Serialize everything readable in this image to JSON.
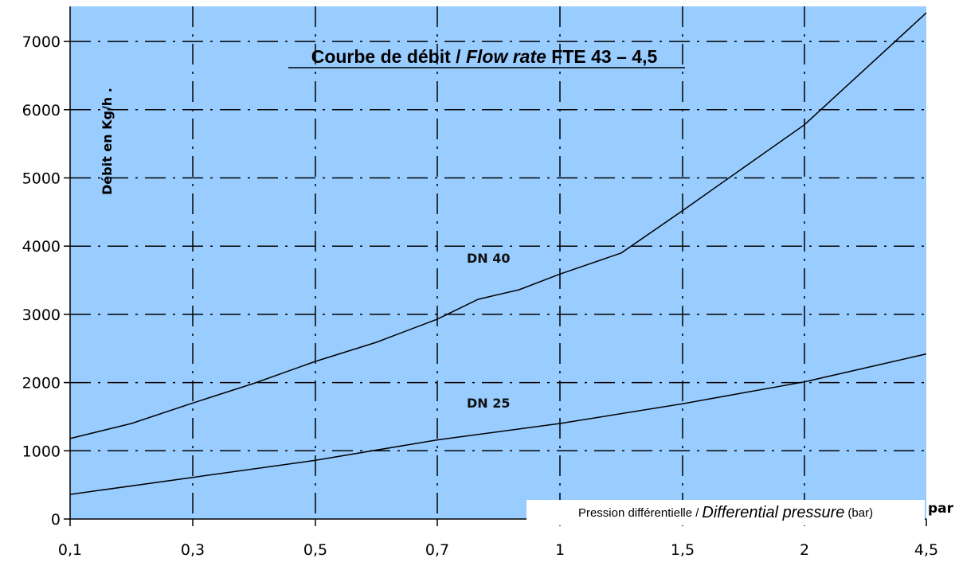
{
  "chart_data": {
    "type": "line",
    "title": {
      "part1": "Courbe de débit / ",
      "part2_italic": "Flow rate",
      "part3": " FTE 43 – 4,5"
    },
    "ylabel": "Débit en Kg/h .",
    "xlabel": {
      "part1": "Pression différentielle / ",
      "part2_italic": "Differential pressure",
      "part3": " (bar)"
    },
    "x_unit_fragment": "par",
    "categories": [
      "0,1",
      "0,3",
      "0,5",
      "0,7",
      "1",
      "1,5",
      "2",
      "4,5"
    ],
    "y_ticks": [
      0,
      1000,
      2000,
      3000,
      4000,
      5000,
      6000,
      7000
    ],
    "ylim": [
      0,
      7500
    ],
    "grid": true,
    "background_color": "#99ccff",
    "grid_color": "#000000",
    "line_color": "#000000",
    "series": [
      {
        "name": "DN 40",
        "points": [
          [
            0.1,
            1180
          ],
          [
            0.2,
            1400
          ],
          [
            0.3,
            1700
          ],
          [
            0.4,
            1990
          ],
          [
            0.5,
            2310
          ],
          [
            0.6,
            2590
          ],
          [
            0.7,
            2930
          ],
          [
            0.8,
            3220
          ],
          [
            0.9,
            3360
          ],
          [
            1,
            3590
          ],
          [
            1.25,
            3900
          ],
          [
            1.5,
            4520
          ],
          [
            1.75,
            5150
          ],
          [
            2,
            5780
          ],
          [
            3.25,
            6600
          ],
          [
            4.5,
            7420
          ]
        ]
      },
      {
        "name": "DN 25",
        "points": [
          [
            0.1,
            360
          ],
          [
            0.3,
            610
          ],
          [
            0.5,
            860
          ],
          [
            0.7,
            1160
          ],
          [
            1,
            1400
          ],
          [
            1.5,
            1690
          ],
          [
            2,
            2010
          ],
          [
            4.5,
            2420
          ]
        ]
      }
    ]
  }
}
